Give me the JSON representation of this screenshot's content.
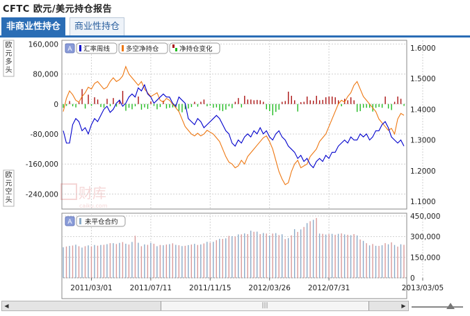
{
  "title": "CFTC  欧元/美元持仓报告",
  "tabs": [
    {
      "label": "非商业性持仓",
      "active": true
    },
    {
      "label": "商业性持仓",
      "active": false
    }
  ],
  "scrollbar": {
    "thumb_glyph": "|||"
  },
  "chart_data": [
    {
      "type": "line",
      "side_label_top": "欧元多头",
      "side_label_bottom": "欧元空头",
      "left_axis": {
        "ylim": [
          -280000,
          170000
        ],
        "ticks": [
          160000,
          80000,
          0,
          -80000,
          -160000,
          -240000
        ],
        "tick_labels": [
          "160,000",
          "80,000",
          "0",
          "-80,000",
          "-160,000",
          "-240,000"
        ]
      },
      "right_axis": {
        "ylim": [
          1.075,
          1.625
        ],
        "ticks": [
          1.6,
          1.5,
          1.4,
          1.3,
          1.2,
          1.1
        ],
        "tick_labels": [
          "1.6000",
          "1.5000",
          "1.4000",
          "1.3000",
          "1.2000",
          "1.1000"
        ]
      },
      "legend": [
        "汇率周线",
        "多空净持仓",
        "净持仓变化"
      ],
      "legend_badge": "A",
      "watermark": "财库",
      "watermark_sub": "caiku.com",
      "colors": {
        "rate": "#0000cc",
        "net": "#ee7711",
        "chg_pos": "#aa1111",
        "chg_neg": "#22bb22",
        "grid": "#d0d0d0"
      },
      "x_tick_labels": [
        "2011/03/01",
        "2011/07/11",
        "2011/11/15",
        "2012/03/26",
        "2012/07/31",
        "2013/03/05"
      ],
      "x_tick_weeks": [
        9,
        28,
        47,
        66,
        85,
        115
      ],
      "series": [
        {
          "name": "汇率周线",
          "axis": "right",
          "x_start": "2010/10/26",
          "x_step_days": 7,
          "values": [
            1.33,
            1.29,
            1.29,
            1.35,
            1.37,
            1.36,
            1.33,
            1.34,
            1.32,
            1.35,
            1.37,
            1.36,
            1.38,
            1.4,
            1.41,
            1.39,
            1.4,
            1.42,
            1.43,
            1.41,
            1.42,
            1.44,
            1.45,
            1.44,
            1.47,
            1.46,
            1.48,
            1.45,
            1.44,
            1.42,
            1.43,
            1.44,
            1.45,
            1.44,
            1.44,
            1.42,
            1.41,
            1.44,
            1.43,
            1.42,
            1.37,
            1.36,
            1.35,
            1.37,
            1.36,
            1.34,
            1.35,
            1.36,
            1.37,
            1.38,
            1.37,
            1.35,
            1.33,
            1.32,
            1.29,
            1.28,
            1.3,
            1.29,
            1.31,
            1.32,
            1.31,
            1.33,
            1.32,
            1.34,
            1.32,
            1.33,
            1.31,
            1.3,
            1.32,
            1.33,
            1.31,
            1.3,
            1.28,
            1.27,
            1.26,
            1.24,
            1.25,
            1.23,
            1.24,
            1.22,
            1.21,
            1.23,
            1.24,
            1.23,
            1.25,
            1.24,
            1.26,
            1.26,
            1.28,
            1.29,
            1.3,
            1.29,
            1.31,
            1.3,
            1.3,
            1.32,
            1.31,
            1.32,
            1.3,
            1.31,
            1.33,
            1.33,
            1.35,
            1.36,
            1.34,
            1.31,
            1.3,
            1.29,
            1.3,
            1.28
          ]
        },
        {
          "name": "多空净持仓",
          "axis": "left",
          "x_start": "2010/10/26",
          "x_step_days": 7,
          "values": [
            -20000,
            15000,
            35000,
            25000,
            10000,
            5000,
            20000,
            30000,
            45000,
            40000,
            55000,
            60000,
            50000,
            40000,
            45000,
            60000,
            70000,
            60000,
            65000,
            75000,
            100000,
            80000,
            70000,
            60000,
            50000,
            60000,
            40000,
            30000,
            20000,
            25000,
            30000,
            10000,
            5000,
            15000,
            10000,
            0,
            -10000,
            -20000,
            -40000,
            -60000,
            -70000,
            -80000,
            -85000,
            -78000,
            -85000,
            -80000,
            -70000,
            -75000,
            -80000,
            -90000,
            -100000,
            -120000,
            -140000,
            -155000,
            -160000,
            -170000,
            -165000,
            -150000,
            -160000,
            -140000,
            -130000,
            -120000,
            -110000,
            -100000,
            -90000,
            -85000,
            -100000,
            -120000,
            -150000,
            -180000,
            -200000,
            -215000,
            -210000,
            -180000,
            -160000,
            -150000,
            -170000,
            -165000,
            -160000,
            -140000,
            -130000,
            -120000,
            -100000,
            -90000,
            -80000,
            -60000,
            -40000,
            -20000,
            0,
            10000,
            5000,
            20000,
            30000,
            50000,
            60000,
            40000,
            20000,
            10000,
            0,
            -10000,
            -20000,
            -40000,
            -50000,
            -60000,
            -70000,
            -65000,
            -80000,
            -40000,
            -25000,
            -30000
          ]
        },
        {
          "name": "净持仓变化",
          "axis": "left",
          "type": "bar",
          "x_start": "2010/10/26",
          "x_step_days": 7,
          "values": [
            -10000,
            -5000,
            8000,
            -6000,
            -9000,
            5000,
            40000,
            -12000,
            25000,
            -5000,
            18000,
            12000,
            -8000,
            -10000,
            14000,
            -6000,
            16000,
            -7000,
            11000,
            35000,
            -18000,
            -10000,
            -14000,
            -6000,
            20000,
            -15000,
            -9000,
            -13000,
            7000,
            -5000,
            -14000,
            -8000,
            9000,
            -12000,
            -10000,
            -9000,
            -10000,
            -18000,
            -22000,
            -14000,
            -12000,
            -8000,
            6000,
            -7000,
            6000,
            12000,
            -6000,
            -4000,
            -10000,
            -9000,
            -17000,
            -19000,
            -15000,
            -6000,
            -11000,
            6000,
            16000,
            -9000,
            22000,
            12000,
            12000,
            10000,
            11000,
            10000,
            6000,
            -14000,
            -19000,
            -30000,
            -21000,
            -15000,
            6000,
            8000,
            33000,
            22000,
            10000,
            -20000,
            5000,
            6000,
            20000,
            10000,
            9000,
            22000,
            10000,
            11000,
            18000,
            20000,
            20000,
            18000,
            10000,
            -6000,
            14000,
            10000,
            18000,
            10000,
            -21000,
            -19000,
            -10000,
            -10000,
            -10000,
            -20000,
            -10000,
            -8000,
            -10000,
            20000,
            -12000,
            -16000,
            6000,
            20000,
            14000,
            -5000
          ]
        },
        {
          "name": "未平仓合约",
          "panel": "bottom",
          "type": "bar",
          "x_start": "2010/10/26",
          "x_step_days": 7,
          "values": [
            222000,
            228000,
            232000,
            235000,
            241000,
            230000,
            220000,
            230000,
            236000,
            229000,
            239000,
            234000,
            239000,
            240000,
            245000,
            252000,
            252000,
            246000,
            254000,
            260000,
            248000,
            242000,
            261000,
            306000,
            255000,
            230000,
            243000,
            240000,
            255000,
            248000,
            230000,
            239000,
            237000,
            242000,
            245000,
            251000,
            240000,
            237000,
            231000,
            233000,
            238000,
            242000,
            247000,
            239000,
            243000,
            250000,
            262000,
            256000,
            262000,
            274000,
            284000,
            283000,
            287000,
            305000,
            303000,
            300000,
            316000,
            316000,
            323000,
            318000,
            343000,
            335000,
            336000,
            318000,
            326000,
            322000,
            308000,
            322000,
            325000,
            311000,
            317000,
            282000,
            289000,
            309000,
            354000,
            334000,
            352000,
            370000,
            398000,
            412000,
            422000,
            435000,
            322000,
            320000,
            315000,
            318000,
            320000,
            313000,
            320000,
            323000,
            316000,
            313000,
            310000,
            318000,
            308000,
            279000,
            269000,
            252000,
            236000,
            246000,
            233000,
            232000,
            237000,
            252000,
            244000,
            258000,
            239000,
            227000,
            244000,
            240000
          ]
        }
      ]
    },
    {
      "type": "bar",
      "panel": "bottom",
      "legend": [
        "未平仓合约"
      ],
      "legend_badge": "A",
      "right_axis": {
        "ylim": [
          0,
          470000
        ],
        "ticks": [
          450000,
          300000,
          150000,
          0
        ],
        "tick_labels": [
          "450,000",
          "300,000",
          "150,000",
          "0"
        ]
      },
      "colors": {
        "bar_a": "#8aaac8",
        "bar_b": "#d99a9a"
      }
    }
  ]
}
